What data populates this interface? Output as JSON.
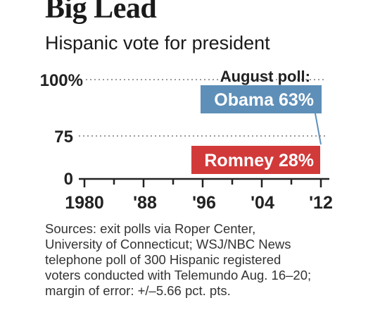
{
  "chart_data": {
    "type": "line",
    "title": "Big Lead",
    "subtitle": "Hispanic vote for president",
    "x_ticks": [
      "1980",
      "'88",
      "'96",
      "'04",
      "'12"
    ],
    "y_ticks": [
      "0",
      "75",
      "100%"
    ],
    "series": [
      {
        "label": "Obama 63%",
        "color": "#5e8fb8",
        "x": [
          2012
        ],
        "y": [
          63
        ]
      },
      {
        "label": "Romney 28%",
        "color": "#d23a3a",
        "x": [
          2012
        ],
        "y": [
          28
        ]
      }
    ],
    "annotation": "August poll:"
  },
  "source_lines": [
    "Sources: exit polls via Roper Center,",
    "University of Connecticut; WSJ/NBC News",
    "telephone poll of 300 Hispanic registered",
    "voters conducted with Telemundo Aug. 16–20;",
    "margin of error: +/–5.66 pct. pts."
  ]
}
